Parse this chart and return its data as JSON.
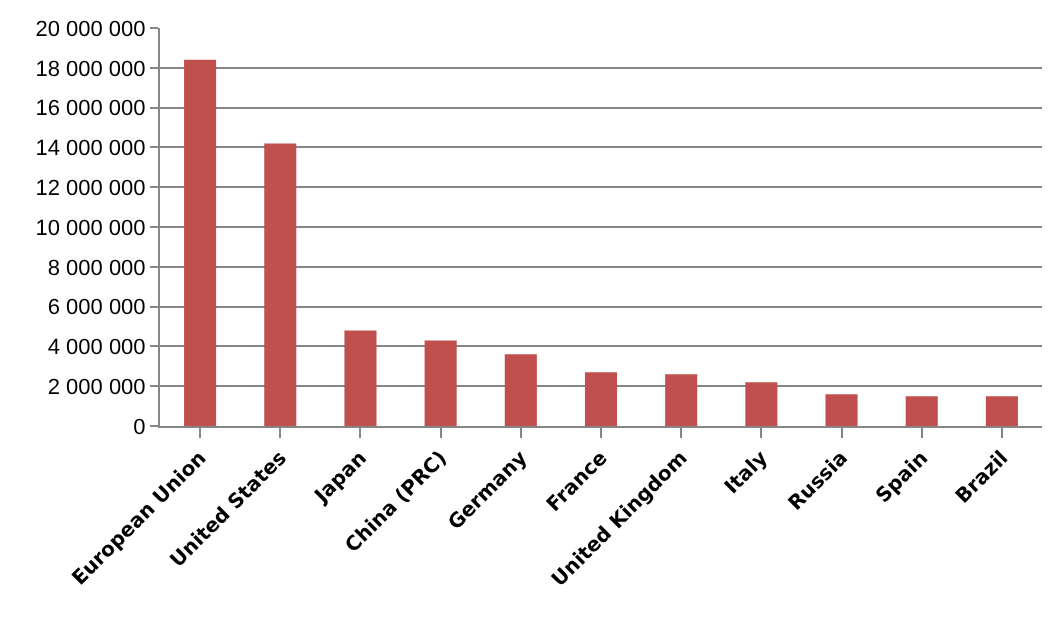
{
  "chart_data": {
    "type": "bar",
    "categories": [
      "European Union",
      "United States",
      "Japan",
      "China (PRC)",
      "Germany",
      "France",
      "United Kingdom",
      "Italy",
      "Russia",
      "Spain",
      "Brazil"
    ],
    "values": [
      18400000,
      14200000,
      4800000,
      4300000,
      3600000,
      2700000,
      2600000,
      2200000,
      1600000,
      1500000,
      1500000
    ],
    "color": "#c0504d",
    "ylim": [
      0,
      20000000
    ],
    "yticks": [
      {
        "value": 0,
        "label": "0"
      },
      {
        "value": 2000000,
        "label": "2 000 000"
      },
      {
        "value": 4000000,
        "label": "4 000 000"
      },
      {
        "value": 6000000,
        "label": "6 000 000"
      },
      {
        "value": 8000000,
        "label": "8 000 000"
      },
      {
        "value": 10000000,
        "label": "10 000 000"
      },
      {
        "value": 12000000,
        "label": "12 000 000"
      },
      {
        "value": 14000000,
        "label": "14 000 000"
      },
      {
        "value": 16000000,
        "label": "16 000 000"
      },
      {
        "value": 18000000,
        "label": "18 000 000"
      },
      {
        "value": 20000000,
        "label": "20 000 000"
      }
    ],
    "grid": "y"
  }
}
